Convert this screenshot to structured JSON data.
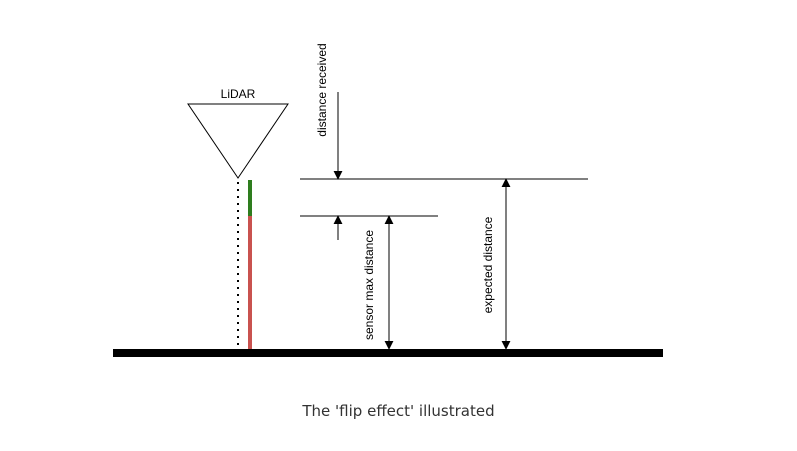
{
  "diagram": {
    "sensor_label": "LiDAR",
    "labels": {
      "distance_received": "distance received",
      "sensor_max_distance": "sensor max distance",
      "expected_distance": "expected distance"
    },
    "colors": {
      "line": "#000000",
      "received_segment": "#2e7d1e",
      "max_segment": "#c9524f"
    }
  },
  "caption": "The 'flip effect' illustrated"
}
